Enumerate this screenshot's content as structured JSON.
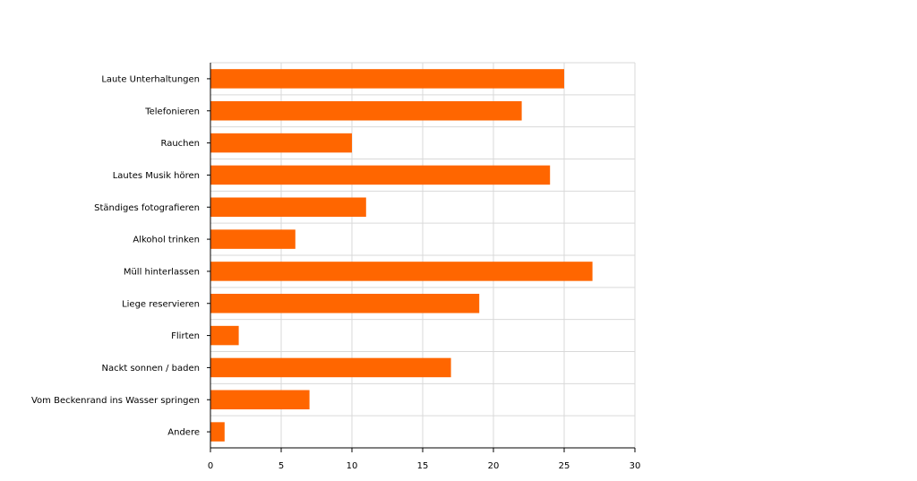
{
  "chart_data": {
    "type": "bar",
    "orientation": "horizontal",
    "categories": [
      "Laute Unterhaltungen",
      "Telefonieren",
      "Rauchen",
      "Lautes Musik hören",
      "Ständiges fotografieren",
      "Alkohol trinken",
      "Müll hinterlassen",
      "Liege reservieren",
      "Flirten",
      "Nackt sonnen / baden",
      "Vom Beckenrand ins Wasser springen",
      "Andere"
    ],
    "values": [
      25,
      22,
      10,
      24,
      11,
      6,
      27,
      19,
      2,
      17,
      7,
      1
    ],
    "xlim": [
      0,
      30
    ],
    "xticks": [
      "0",
      "5",
      "10",
      "15",
      "20",
      "25",
      "30"
    ],
    "grid": true,
    "title": "",
    "xlabel": "",
    "ylabel": "",
    "colors": {
      "bar": "#ff6600",
      "grid": "#d9d9d9",
      "axis": "#000000"
    }
  }
}
